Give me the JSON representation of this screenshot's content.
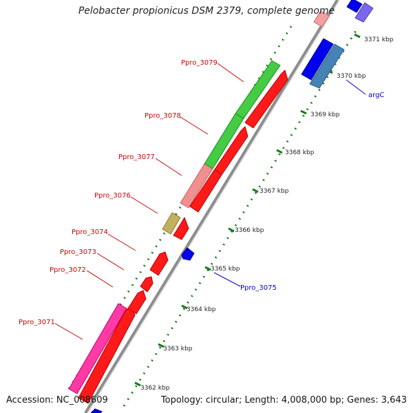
{
  "title": "Pelobacter propionicus DSM 2379, complete genome",
  "footer": {
    "accession": "Accession: NC_008609",
    "summary": "Topology: circular; Length: 4,008,000 bp; Genes: 3,643"
  },
  "colors": {
    "backbone": "#8c8c8c",
    "tick": "#1a7a1a",
    "label_red": "#cc0000",
    "label_blue": "#0000cc"
  },
  "scale_labels": [
    "3362 kbp",
    "3363 kbp",
    "3364 kbp",
    "3365 kbp",
    "3366 kbp",
    "3367 kbp",
    "3368 kbp",
    "3369 kbp",
    "3370 kbp",
    "3371 kbp"
  ],
  "gene_labels": [
    {
      "text": "Ppro_3071",
      "color": "#cc0000"
    },
    {
      "text": "Ppro_3072",
      "color": "#cc0000"
    },
    {
      "text": "Ppro_3073",
      "color": "#cc0000"
    },
    {
      "text": "Ppro_3074",
      "color": "#cc0000"
    },
    {
      "text": "Ppro_3076",
      "color": "#cc0000"
    },
    {
      "text": "Ppro_3077",
      "color": "#cc0000"
    },
    {
      "text": "Ppro_3078",
      "color": "#cc0000"
    },
    {
      "text": "Ppro_3079",
      "color": "#cc0000"
    },
    {
      "text": "Ppro_3075",
      "color": "#0000cc"
    },
    {
      "text": "argC",
      "color": "#0000cc"
    }
  ]
}
